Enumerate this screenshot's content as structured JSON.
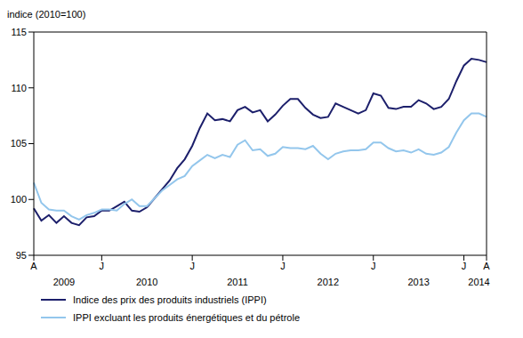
{
  "chart_data": {
    "type": "line",
    "y_label": "indice (2010=100)",
    "categories": [
      "A",
      null,
      null,
      null,
      null,
      null,
      null,
      null,
      null,
      "J",
      null,
      null,
      null,
      null,
      null,
      null,
      null,
      null,
      null,
      null,
      null,
      "J",
      null,
      null,
      null,
      null,
      null,
      null,
      null,
      null,
      null,
      null,
      null,
      "J",
      null,
      null,
      null,
      null,
      null,
      null,
      null,
      null,
      null,
      null,
      null,
      "J",
      null,
      null,
      null,
      null,
      null,
      null,
      null,
      null,
      null,
      null,
      null,
      "J",
      null,
      null,
      "A"
    ],
    "year_labels": [
      null,
      null,
      null,
      null,
      "2009",
      null,
      null,
      null,
      null,
      null,
      null,
      null,
      null,
      null,
      null,
      "2010",
      null,
      null,
      null,
      null,
      null,
      null,
      null,
      null,
      null,
      null,
      null,
      "2011",
      null,
      null,
      null,
      null,
      null,
      null,
      null,
      null,
      null,
      null,
      null,
      "2012",
      null,
      null,
      null,
      null,
      null,
      null,
      null,
      null,
      null,
      null,
      null,
      "2013",
      null,
      null,
      null,
      null,
      null,
      null,
      null,
      "2014",
      null
    ],
    "series": [
      {
        "name": "Indice des prix des produits industriels (IPPI)",
        "color": "#1c1f6b",
        "values": [
          99.2,
          98.1,
          98.6,
          97.9,
          98.5,
          97.9,
          97.7,
          98.4,
          98.5,
          99.0,
          99.0,
          99.4,
          99.8,
          99.0,
          98.9,
          99.3,
          100.1,
          100.9,
          101.7,
          102.8,
          103.6,
          104.8,
          106.4,
          107.7,
          107.1,
          107.2,
          107.0,
          108.0,
          108.3,
          107.8,
          108.0,
          107.0,
          107.6,
          108.4,
          109.0,
          109.0,
          108.2,
          107.6,
          107.3,
          107.4,
          108.6,
          108.3,
          108.0,
          107.7,
          108.0,
          109.5,
          109.3,
          108.2,
          108.1,
          108.3,
          108.3,
          108.9,
          108.6,
          108.1,
          108.3,
          109.0,
          110.6,
          112.0,
          112.6,
          112.5,
          112.3
        ]
      },
      {
        "name": "IPPI excluant les produits énergétiques et du pétrole",
        "color": "#93c6ec",
        "values": [
          101.5,
          99.7,
          99.1,
          99.0,
          99.0,
          98.5,
          98.2,
          98.6,
          98.8,
          99.1,
          99.1,
          99.0,
          99.6,
          100.0,
          99.4,
          99.4,
          100.1,
          100.8,
          101.3,
          101.8,
          102.1,
          103.0,
          103.5,
          104.0,
          103.7,
          104.0,
          103.8,
          104.9,
          105.3,
          104.4,
          104.5,
          103.9,
          104.1,
          104.7,
          104.6,
          104.6,
          104.5,
          104.8,
          104.1,
          103.6,
          104.1,
          104.3,
          104.4,
          104.4,
          104.5,
          105.1,
          105.1,
          104.6,
          104.3,
          104.4,
          104.2,
          104.5,
          104.1,
          104.0,
          104.2,
          104.7,
          106.0,
          107.1,
          107.7,
          107.7,
          107.4
        ]
      }
    ],
    "ylim": [
      95,
      115
    ],
    "yticks": [
      95,
      100,
      105,
      110,
      115
    ],
    "grid": false,
    "legend": "bottom",
    "marker": "none"
  }
}
